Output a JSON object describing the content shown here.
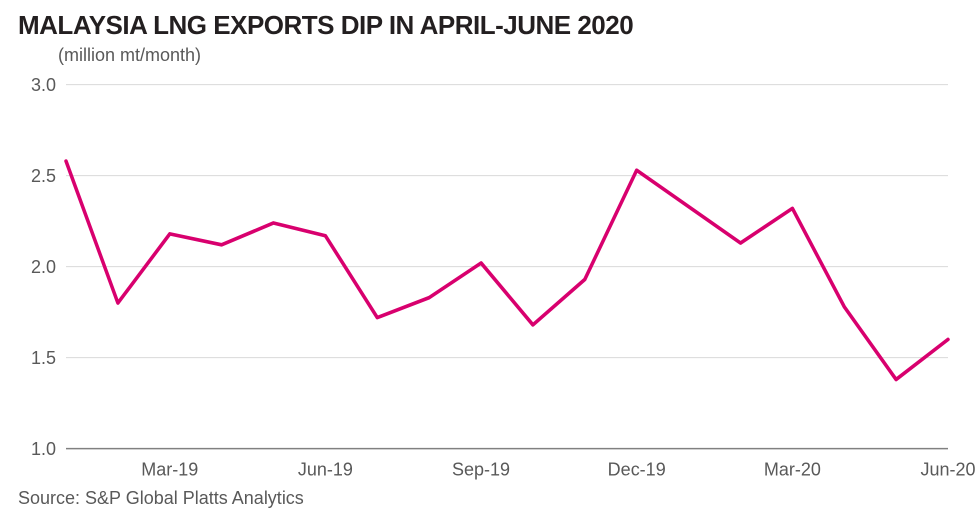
{
  "title": "MALAYSIA LNG EXPORTS DIP IN APRIL-JUNE 2020",
  "subtitle": "(million mt/month)",
  "source": "Source: S&P Global Platts Analytics",
  "chart": {
    "type": "line",
    "line_color": "#d8006e",
    "line_width": 3.5,
    "background_color": "#ffffff",
    "grid_color": "#d9d9d9",
    "baseline_color": "#808080",
    "axis_text_color": "#595959",
    "axis_fontsize": 18,
    "ylim": [
      1.0,
      3.0
    ],
    "yticks": [
      1.0,
      1.5,
      2.0,
      2.5,
      3.0
    ],
    "ytick_labels": [
      "1.0",
      "1.5",
      "2.0",
      "2.5",
      "3.0"
    ],
    "xtick_indices": [
      2,
      5,
      8,
      11,
      14,
      17
    ],
    "xtick_labels": [
      "Mar-19",
      "Jun-19",
      "Sep-19",
      "Dec-19",
      "Mar-20",
      "Jun-20"
    ],
    "data_points": [
      2.58,
      1.8,
      2.18,
      2.12,
      2.24,
      2.17,
      1.72,
      1.83,
      2.02,
      1.68,
      1.93,
      2.53,
      2.33,
      2.13,
      2.32,
      1.78,
      1.38,
      1.6
    ]
  }
}
